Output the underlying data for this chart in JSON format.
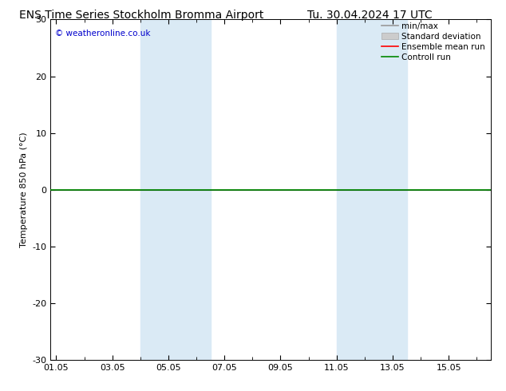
{
  "title_left": "ENS Time Series Stockholm Bromma Airport",
  "title_right": "Tu. 30.04.2024 17 UTC",
  "ylabel": "Temperature 850 hPa (°C)",
  "ylim": [
    -30,
    30
  ],
  "yticks": [
    -30,
    -20,
    -10,
    0,
    10,
    20,
    30
  ],
  "xtick_labels": [
    "01.05",
    "03.05",
    "05.05",
    "07.05",
    "09.05",
    "11.05",
    "13.05",
    "15.05"
  ],
  "xtick_positions": [
    0,
    2,
    4,
    6,
    8,
    10,
    12,
    14
  ],
  "xlim": [
    -0.2,
    15.5
  ],
  "shaded_bands": [
    {
      "x_start": 3.0,
      "x_end": 5.5
    },
    {
      "x_start": 10.0,
      "x_end": 12.5
    }
  ],
  "shade_color": "#daeaf5",
  "watermark": "© weatheronline.co.uk",
  "watermark_color": "#0000cc",
  "zero_line_color": "#000000",
  "controll_run_color": "#008800",
  "background_color": "#ffffff",
  "legend_items": [
    {
      "label": "min/max",
      "color": "#999999",
      "lw": 1.2,
      "type": "line"
    },
    {
      "label": "Standard deviation",
      "color": "#cccccc",
      "lw": 1.2,
      "type": "band"
    },
    {
      "label": "Ensemble mean run",
      "color": "#ff0000",
      "lw": 1.2,
      "type": "line"
    },
    {
      "label": "Controll run",
      "color": "#008800",
      "lw": 1.2,
      "type": "line"
    }
  ],
  "title_fontsize": 10,
  "tick_fontsize": 8,
  "ylabel_fontsize": 8,
  "legend_fontsize": 7.5
}
